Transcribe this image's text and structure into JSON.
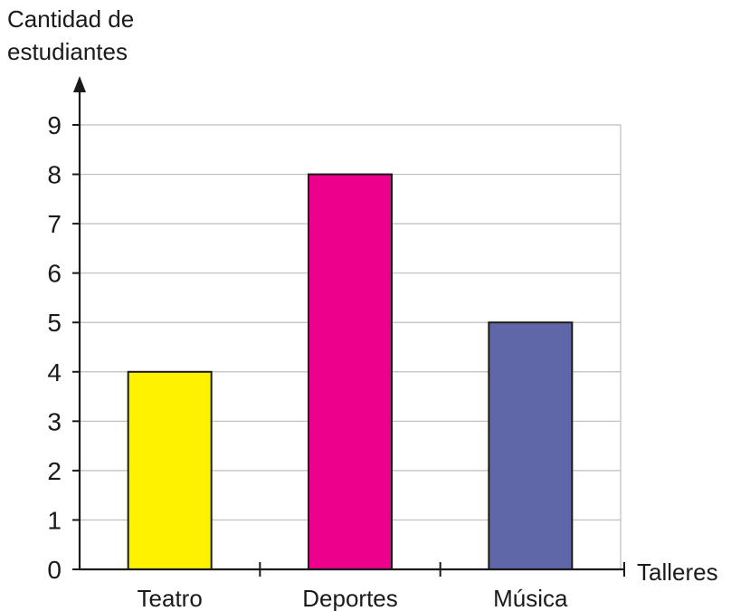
{
  "chart_data": {
    "type": "bar",
    "title": "",
    "xlabel": "Talleres",
    "ylabel_lines": [
      "Cantidad de",
      "estudiantes"
    ],
    "categories": [
      "Teatro",
      "Deportes",
      "Música"
    ],
    "values": [
      4,
      8,
      5
    ],
    "ylim": [
      0,
      9
    ],
    "yticks": [
      "0",
      "1",
      "2",
      "3",
      "4",
      "5",
      "6",
      "7",
      "8",
      "9"
    ],
    "grid": true,
    "legend": "none",
    "bar_colors": [
      "#fff200",
      "#ec008c",
      "#5f67a8"
    ],
    "colors": {
      "axis": "#1a1a1a",
      "grid": "#bdbdbd",
      "bar_outline": "#1a1a1a"
    }
  }
}
